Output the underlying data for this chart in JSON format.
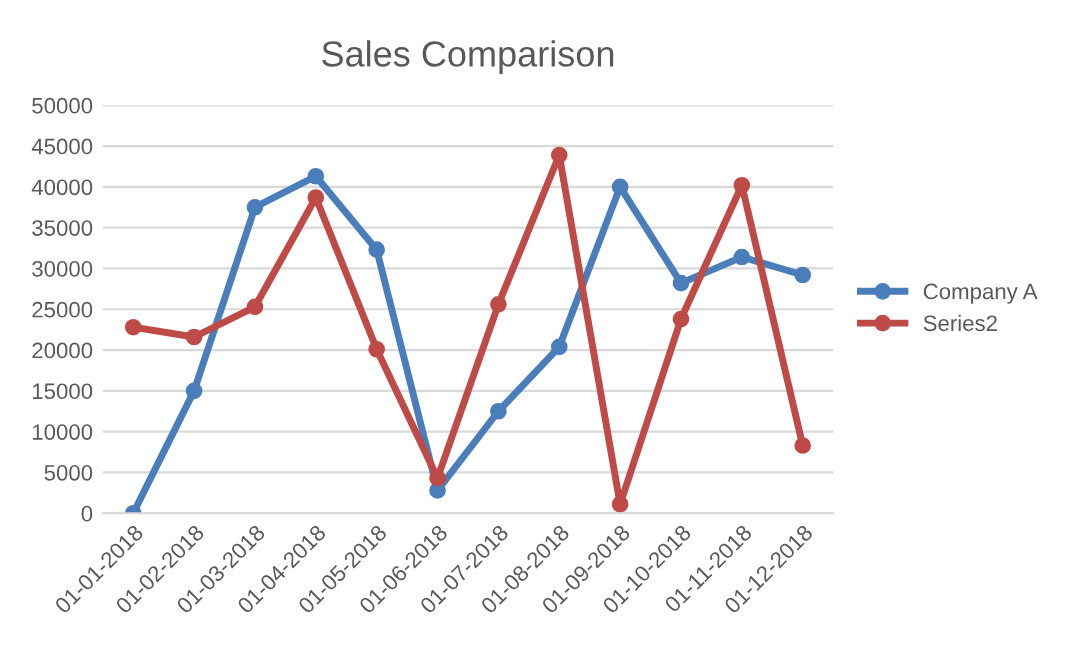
{
  "chart_data": {
    "type": "line",
    "title": "Sales Comparison",
    "categories": [
      "01-01-2018",
      "01-02-2018",
      "01-03-2018",
      "01-04-2018",
      "01-05-2018",
      "01-06-2018",
      "01-07-2018",
      "01-08-2018",
      "01-09-2018",
      "01-10-2018",
      "01-11-2018",
      "01-12-2018"
    ],
    "series": [
      {
        "name": "Company A",
        "color": "#4a7ebb",
        "values": [
          0,
          15000,
          37500,
          41300,
          32300,
          2800,
          12500,
          20400,
          40000,
          28200,
          31400,
          29200
        ]
      },
      {
        "name": "Series2",
        "color": "#be4b48",
        "values": [
          22800,
          21600,
          25300,
          38700,
          20100,
          4300,
          25600,
          43900,
          1100,
          23800,
          40200,
          8300
        ]
      }
    ],
    "ylim": [
      0,
      50000
    ],
    "yticks": [
      0,
      5000,
      10000,
      15000,
      20000,
      25000,
      30000,
      35000,
      40000,
      45000,
      50000
    ],
    "grid": "y",
    "legend": "right",
    "marker": "circle",
    "line_style": "solid"
  }
}
